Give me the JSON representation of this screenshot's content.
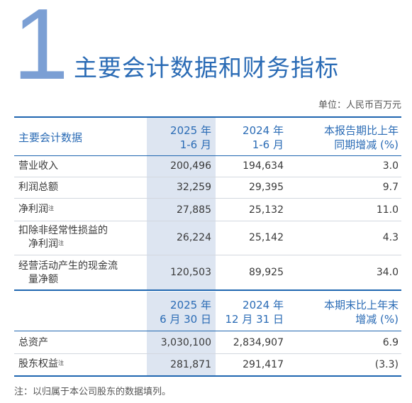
{
  "section": {
    "number": "1",
    "title": "主要会计数据和财务指标",
    "unit": "单位：人民币百万元"
  },
  "table1": {
    "header": {
      "label": "主要会计数据",
      "col1": [
        "2025 年",
        "1-6 月"
      ],
      "col2": [
        "2024 年",
        "1-6 月"
      ],
      "col3": [
        "本报告期比上年",
        "同期增减 (%)"
      ]
    },
    "rows": [
      {
        "label": [
          "营业收入"
        ],
        "note": false,
        "v1": "200,496",
        "v2": "194,634",
        "v3": "3.0"
      },
      {
        "label": [
          "利润总额"
        ],
        "note": false,
        "v1": "32,259",
        "v2": "29,395",
        "v3": "9.7"
      },
      {
        "label": [
          "净利润"
        ],
        "note": true,
        "v1": "27,885",
        "v2": "25,132",
        "v3": "11.0"
      },
      {
        "label": [
          "扣除非经常性损益的",
          "净利润"
        ],
        "note": true,
        "v1": "26,224",
        "v2": "25,142",
        "v3": "4.3"
      },
      {
        "label": [
          "经营活动产生的现金流",
          "量净额"
        ],
        "note": false,
        "v1": "120,503",
        "v2": "89,925",
        "v3": "34.0"
      }
    ]
  },
  "table2": {
    "header": {
      "col1": [
        "2025 年",
        "6 月 30 日"
      ],
      "col2": [
        "2024 年",
        "12 月 31 日"
      ],
      "col3": [
        "本期末比上年末",
        "增减 (%)"
      ]
    },
    "rows": [
      {
        "label": [
          "总资产"
        ],
        "note": false,
        "v1": "3,030,100",
        "v2": "2,834,907",
        "v3": "6.9"
      },
      {
        "label": [
          "股东权益"
        ],
        "note": true,
        "v1": "281,871",
        "v2": "291,417",
        "v3": "(3.3)"
      }
    ]
  },
  "note_mark": "注",
  "footnote": "注：以归属于本公司股东的数据填列。"
}
